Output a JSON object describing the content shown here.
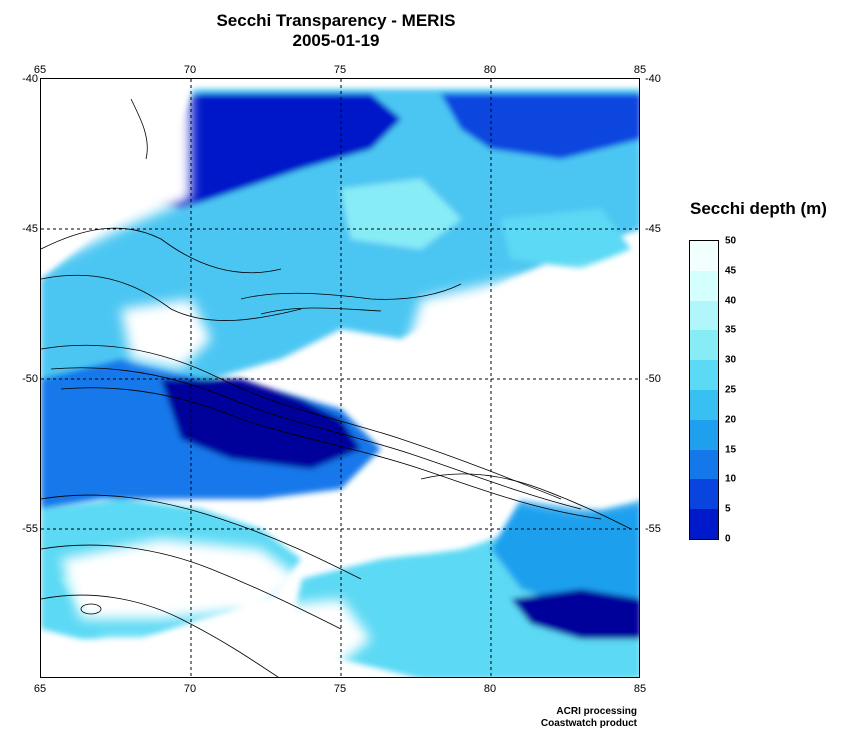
{
  "title": "Secchi Transparency - MERIS",
  "date": "2005-01-19",
  "longitude_ticks": [
    "65",
    "70",
    "75",
    "80",
    "85"
  ],
  "latitude_ticks": [
    "-40",
    "-45",
    "-50",
    "-55"
  ],
  "legend": {
    "title": "Secchi depth (m)",
    "labels": [
      "50",
      "45",
      "40",
      "35",
      "30",
      "25",
      "20",
      "15",
      "10",
      "5",
      "0"
    ],
    "colors": [
      "#f2ffff",
      "#d4ffff",
      "#b0f6fb",
      "#88ecf7",
      "#5cd9f4",
      "#38c0f1",
      "#1ea0ee",
      "#1478ea",
      "#0a44df",
      "#0019c9",
      "#00009b"
    ]
  },
  "credits": {
    "line1": "ACRI processing",
    "line2": "Coastwatch product"
  }
}
